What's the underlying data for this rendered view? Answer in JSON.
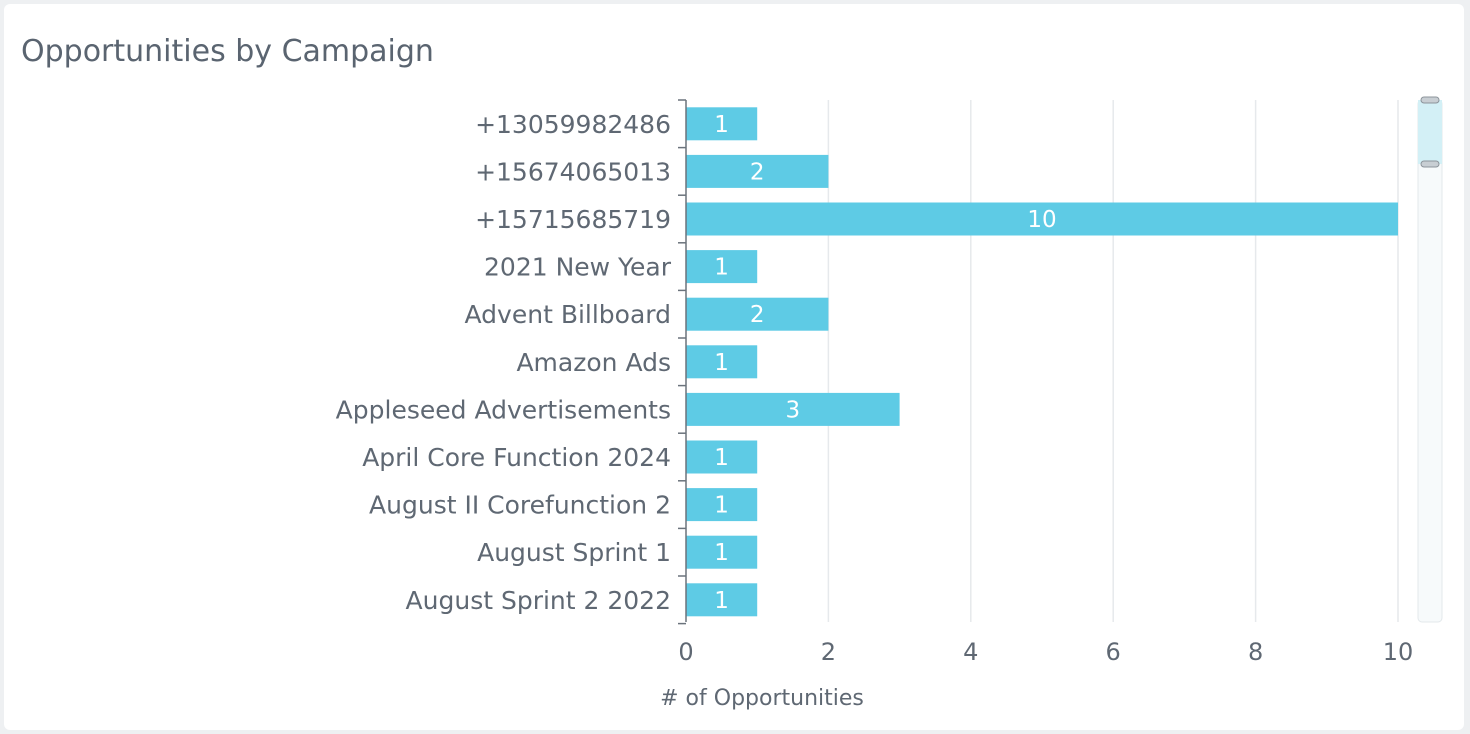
{
  "chart_data": {
    "type": "bar",
    "orientation": "horizontal",
    "title": "Opportunities by Campaign",
    "xlabel": "# of Opportunities",
    "ylabel": "",
    "xlim": [
      0,
      10
    ],
    "x_ticks": [
      0,
      2,
      4,
      6,
      8,
      10
    ],
    "grid": true,
    "categories": [
      "+13059982486",
      "+15674065013",
      "+15715685719",
      "2021 New Year",
      "Advent Billboard",
      "Amazon Ads",
      "Appleseed Advertisements",
      "April Core Function 2024",
      "August II Corefunction 2",
      "August Sprint 1",
      "August Sprint 2 2022"
    ],
    "values": [
      1,
      2,
      10,
      1,
      2,
      1,
      3,
      1,
      1,
      1,
      1
    ],
    "bar_color": "#5ecbe5",
    "data_labels": true
  },
  "scrollbar": {
    "track_color": "#f7fafb",
    "thumb_color": "#d3f0f6"
  }
}
